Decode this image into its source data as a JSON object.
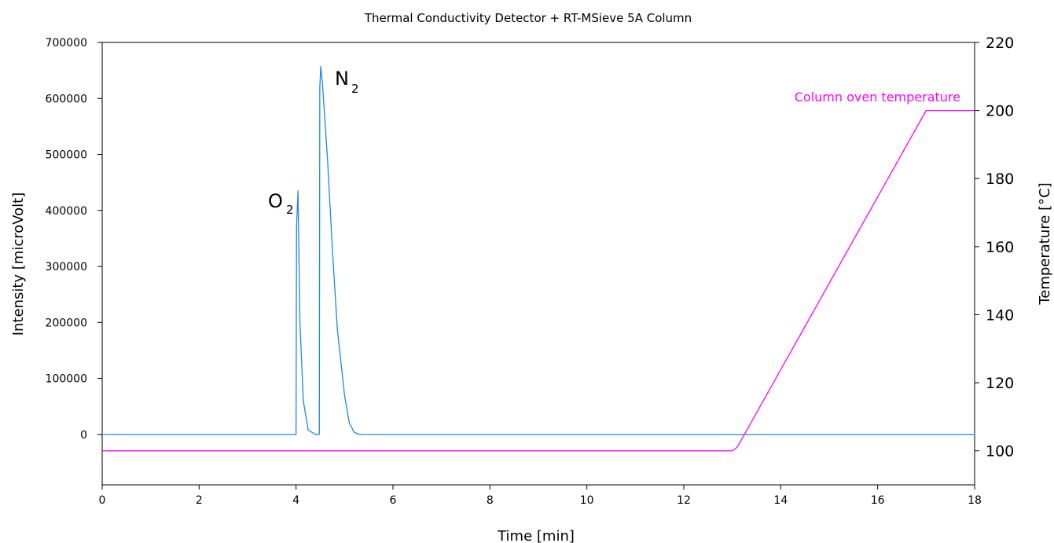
{
  "chart_data": {
    "type": "line",
    "title": "Thermal Conductivity Detector + RT-MSieve 5A Column",
    "xlabel": "Time [min]",
    "ylabel": "Intensity [microVolt]",
    "y2label": "Temperature [°C]",
    "xlim": [
      0,
      18
    ],
    "ylim": [
      -90000,
      700000
    ],
    "y2lim": [
      90,
      220
    ],
    "x_ticks": [
      0,
      2,
      4,
      6,
      8,
      10,
      12,
      14,
      16,
      18
    ],
    "y_ticks": [
      0,
      100000,
      200000,
      300000,
      400000,
      500000,
      600000,
      700000
    ],
    "y2_ticks": [
      100,
      120,
      140,
      160,
      180,
      200,
      220
    ],
    "grid": false,
    "series": [
      {
        "axis": "left",
        "color": "#1e88e5",
        "x": [
          0,
          4.0,
          4.01,
          4.04,
          4.08,
          4.15,
          4.25,
          4.4,
          4.48,
          4.49,
          4.51,
          4.55,
          4.65,
          4.75,
          4.85,
          5.0,
          5.1,
          5.2,
          5.3,
          5.5,
          18
        ],
        "y": [
          0,
          0,
          370000,
          435000,
          200000,
          60000,
          8000,
          0,
          0,
          620000,
          657000,
          620000,
          490000,
          330000,
          190000,
          70000,
          20000,
          4000,
          0,
          0,
          0
        ]
      },
      {
        "axis": "right",
        "color": "#ff00ff",
        "x": [
          0,
          13.0,
          13.1,
          17.0,
          17.1,
          18
        ],
        "y": [
          100,
          100,
          101,
          200,
          200,
          200
        ]
      }
    ],
    "annotations": {
      "o2": {
        "main": "O",
        "sub": "2"
      },
      "n2": {
        "main": "N",
        "sub": "2"
      },
      "oven": "Column oven temperature"
    }
  }
}
